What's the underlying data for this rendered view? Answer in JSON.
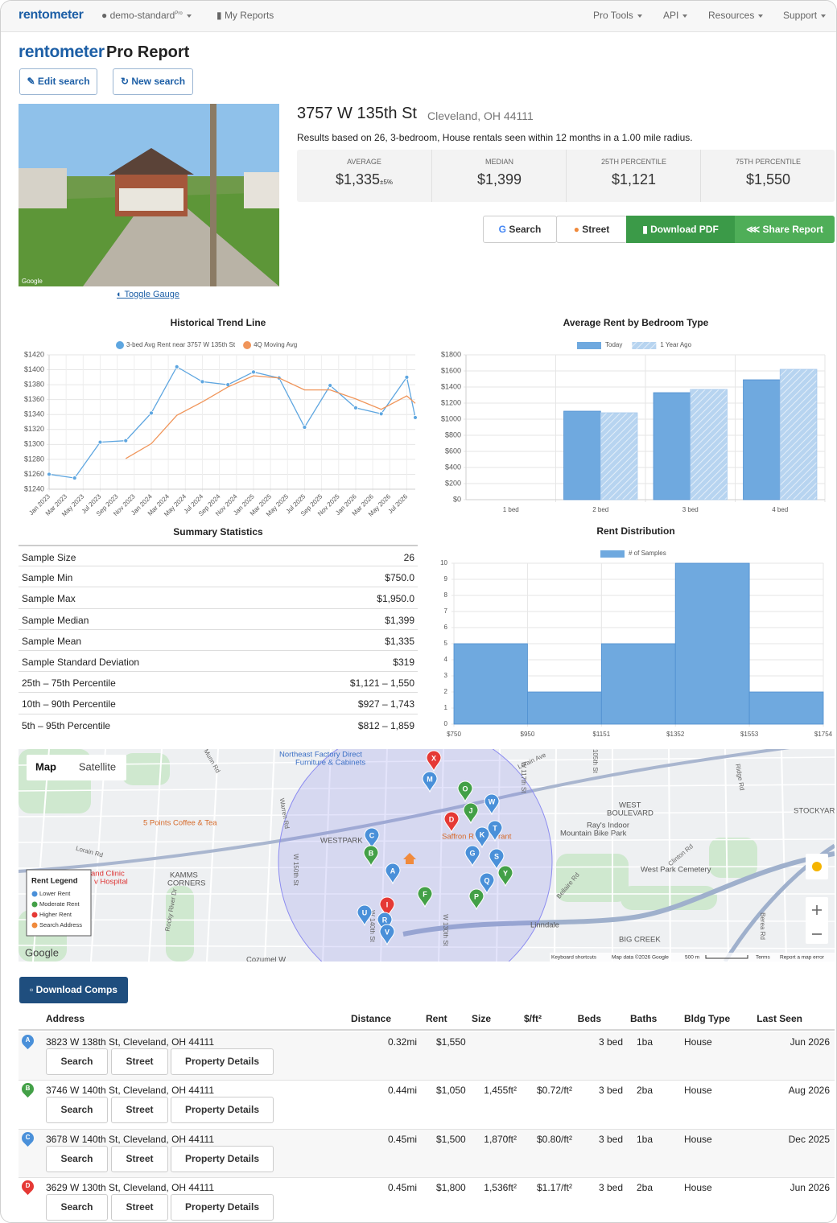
{
  "nav": {
    "brand": "rentometer",
    "user": "demo-standard",
    "badge": "Pro",
    "reports": "My Reports",
    "menu": [
      "Pro Tools",
      "API",
      "Resources",
      "Support"
    ]
  },
  "header": {
    "brand": "rentometer",
    "title": "Pro Report",
    "buttons": [
      "Edit search",
      "New search"
    ]
  },
  "photo": {
    "credit": "Google",
    "toggle": "Toggle Gauge"
  },
  "property": {
    "address": "3757 W 135th St",
    "city": "Cleveland, OH 44111",
    "summary": "Results based on 26, 3-bedroom, House rentals seen within 12 months in a 1.00 mile radius.",
    "stats": [
      {
        "label": "AVERAGE",
        "value": "$1,335",
        "note": "±5%"
      },
      {
        "label": "MEDIAN",
        "value": "$1,399"
      },
      {
        "label": "25TH PERCENTILE",
        "value": "$1,121"
      },
      {
        "label": "75TH PERCENTILE",
        "value": "$1,550"
      }
    ]
  },
  "actions": [
    "Search",
    "Street",
    "Download PDF",
    "Share Report"
  ],
  "chart_data": [
    {
      "type": "line",
      "title": "Historical Trend Line",
      "x": [
        "Jan 2023",
        "Apr 2023",
        "Jul 2023",
        "Oct 2023",
        "Jan 2024",
        "Apr 2024",
        "Jul 2024",
        "Oct 2024",
        "Jan 2025",
        "Apr 2025",
        "Jul 2025",
        "Oct 2025",
        "Jan 2026",
        "Apr 2026",
        "Jul 2026",
        "Aug 2026"
      ],
      "xlim": [
        "Jan 2023",
        "Aug 2026"
      ],
      "xticks": [
        "Jan 2023",
        "Mar 2023",
        "May 2023",
        "Jul 2023",
        "Sep 2023",
        "Nov 2023",
        "Jan 2024",
        "Mar 2024",
        "May 2024",
        "Jul 2024",
        "Sep 2024",
        "Nov 2024",
        "Jan 2025",
        "Mar 2025",
        "May 2025",
        "Jul 2025",
        "Sep 2025",
        "Nov 2025",
        "Jan 2026",
        "Mar 2026",
        "May 2026",
        "Jul 2026"
      ],
      "series": [
        {
          "name": "3-bed Avg Rent near 3757 W 135th St",
          "color": "#5ea6e0",
          "markers": true,
          "values": [
            1260,
            1255,
            1303,
            1305,
            1342,
            1404,
            1384,
            1380,
            1397,
            1389,
            1323,
            1379,
            1349,
            1341,
            1390,
            1336
          ]
        },
        {
          "name": "4Q Moving Avg",
          "color": "#f0955a",
          "markers": false,
          "values": [
            null,
            null,
            null,
            1281,
            1301,
            1339,
            1357,
            1377,
            1392,
            1389,
            1373,
            1373,
            1361,
            1347,
            1365,
            1355
          ]
        }
      ],
      "ylim": [
        1240,
        1420
      ],
      "yticks": [
        {
          "value": 1240,
          "label": "$1240"
        },
        {
          "value": 1260,
          "label": "$1260"
        },
        {
          "value": 1280,
          "label": "$1280"
        },
        {
          "value": 1300,
          "label": "$1300"
        },
        {
          "value": 1320,
          "label": "$1320"
        },
        {
          "value": 1340,
          "label": "$1340"
        },
        {
          "value": 1360,
          "label": "$1360"
        },
        {
          "value": 1380,
          "label": "$1380"
        },
        {
          "value": 1400,
          "label": "$1400"
        },
        {
          "value": 1420,
          "label": "$1420"
        }
      ],
      "grid": true,
      "legend": "top"
    },
    {
      "type": "bar",
      "title": "Average Rent by Bedroom Type",
      "categories": [
        "1 bed",
        "2 bed",
        "3 bed",
        "4 bed"
      ],
      "series": [
        {
          "name": "Today",
          "color": "#6fa9df",
          "hatch": false,
          "values": [
            null,
            1100,
            1330,
            1490
          ]
        },
        {
          "name": "1 Year Ago",
          "color": "#b7d4f0",
          "hatch": true,
          "values": [
            null,
            1080,
            1370,
            1620
          ]
        }
      ],
      "ylim": [
        0,
        1800
      ],
      "yticks": [
        {
          "value": 0,
          "label": "$0"
        },
        {
          "value": 200,
          "label": "$200"
        },
        {
          "value": 400,
          "label": "$400"
        },
        {
          "value": 600,
          "label": "$600"
        },
        {
          "value": 800,
          "label": "$800"
        },
        {
          "value": 1000,
          "label": "$1000"
        },
        {
          "value": 1200,
          "label": "$1200"
        },
        {
          "value": 1400,
          "label": "$1400"
        },
        {
          "value": 1600,
          "label": "$1600"
        },
        {
          "value": 1800,
          "label": "$1800"
        }
      ],
      "grid": true,
      "legend": "top"
    },
    {
      "type": "histogram",
      "title": "Rent Distribution",
      "series": [
        {
          "name": "# of Samples",
          "color": "#6fa9df",
          "values": [
            5,
            2,
            5,
            10,
            2
          ]
        }
      ],
      "bins": [
        750,
        950,
        1151,
        1352,
        1553,
        1754
      ],
      "xlim": [
        750,
        1754
      ],
      "xticks": [
        {
          "value": 750,
          "label": "$750"
        },
        {
          "value": 950,
          "label": "$950"
        },
        {
          "value": 1151,
          "label": "$1151"
        },
        {
          "value": 1352,
          "label": "$1352"
        },
        {
          "value": 1553,
          "label": "$1553"
        },
        {
          "value": 1754,
          "label": "$1754"
        }
      ],
      "ylim": [
        0,
        10
      ],
      "yticks": [
        0,
        1,
        2,
        3,
        4,
        5,
        6,
        7,
        8,
        9,
        10
      ],
      "grid": true,
      "legend": "top"
    }
  ],
  "summary": {
    "title": "Summary Statistics",
    "rows": [
      [
        "Sample Size",
        "26"
      ],
      [
        "Sample Min",
        "$750.0"
      ],
      [
        "Sample Max",
        "$1,950.0"
      ],
      [
        "Sample Median",
        "$1,399"
      ],
      [
        "Sample Mean",
        "$1,335"
      ],
      [
        "Sample Standard Deviation",
        "$319"
      ],
      [
        "25th – 75th Percentile",
        "$1,121 – 1,550"
      ],
      [
        "10th – 90th Percentile",
        "$927 – 1,743"
      ],
      [
        "5th – 95th Percentile",
        "$812 – 1,859"
      ]
    ]
  },
  "map": {
    "tabs": [
      "Map",
      "Satellite"
    ],
    "places": [
      "Northeast Factory Direct",
      "Furniture & Cabinets",
      "5 Points Coffee & Tea",
      "WESTPARK",
      "KAMMS",
      "CORNERS",
      "WEST",
      "BOULEVARD",
      "Ray's Indoor",
      "Mountain Bike Park",
      "West Park Cemetery",
      "Linndale",
      "BIG CREEK",
      "STOCKYAR",
      "Saffron R",
      "rant",
      "and Clinic",
      "v Hospital",
      "Cozumel W"
    ],
    "roads": [
      "Munn Rd",
      "Warren Rd",
      "Lorain Ave",
      "Lorain Rd",
      "W 150th St",
      "Rocky River Dr",
      "W 140th St",
      "W 130th St",
      "W 117th St",
      "W 105th St",
      "Bellaire Rd",
      "Clinton Rd",
      "Ridge Rd",
      "Berea Rd"
    ],
    "legend": {
      "title": "Rent Legend",
      "items": [
        {
          "label": "Lower Rent",
          "color": "#4a90d9"
        },
        {
          "label": "Moderate Rent",
          "color": "#43a047"
        },
        {
          "label": "Higher Rent",
          "color": "#e53935"
        },
        {
          "label": "Search Address",
          "color": "#f08a3c"
        }
      ]
    },
    "markers": [
      {
        "label": "X",
        "color": "#e53935"
      },
      {
        "label": "M",
        "color": "#4a90d9"
      },
      {
        "label": "O",
        "color": "#43a047"
      },
      {
        "label": "W",
        "color": "#4a90d9"
      },
      {
        "label": "J",
        "color": "#43a047"
      },
      {
        "label": "D",
        "color": "#e53935"
      },
      {
        "label": "T",
        "color": "#4a90d9"
      },
      {
        "label": "K",
        "color": "#4a90d9"
      },
      {
        "label": "C",
        "color": "#4a90d9"
      },
      {
        "label": "G",
        "color": "#4a90d9"
      },
      {
        "label": "S",
        "color": "#4a90d9"
      },
      {
        "label": "B",
        "color": "#43a047"
      },
      {
        "label": "A",
        "color": "#4a90d9"
      },
      {
        "label": "Y",
        "color": "#43a047"
      },
      {
        "label": "Q",
        "color": "#4a90d9"
      },
      {
        "label": "F",
        "color": "#43a047"
      },
      {
        "label": "P",
        "color": "#43a047"
      },
      {
        "label": "I",
        "color": "#e53935"
      },
      {
        "label": "U",
        "color": "#4a90d9"
      },
      {
        "label": "R",
        "color": "#4a90d9"
      },
      {
        "label": "V",
        "color": "#4a90d9"
      }
    ],
    "attribution": "Google",
    "footer": [
      "Keyboard shortcuts",
      "Map data ©2026 Google",
      "500 m",
      "Terms",
      "Report a map error"
    ]
  },
  "comps": {
    "download": "Download Comps",
    "columns": [
      "Address",
      "Distance",
      "Rent",
      "Size",
      "$/ft²",
      "Beds",
      "Baths",
      "Bldg Type",
      "Last Seen"
    ],
    "actions": [
      "Search",
      "Street",
      "Property Details"
    ],
    "rows": [
      {
        "marker": "A",
        "color": "#4a90d9",
        "cells": [
          "3823 W 138th St, Cleveland, OH 44111",
          "0.32mi",
          "$1,550",
          null,
          null,
          "3 bed",
          "1ba",
          "House",
          "Jun 2026"
        ]
      },
      {
        "marker": "B",
        "color": "#43a047",
        "cells": [
          "3746 W 140th St, Cleveland, OH 44111",
          "0.44mi",
          "$1,050",
          "1,455ft²",
          "$0.72/ft²",
          "3 bed",
          "2ba",
          "House",
          "Aug 2026"
        ]
      },
      {
        "marker": "C",
        "color": "#4a90d9",
        "cells": [
          "3678 W 140th St, Cleveland, OH 44111",
          "0.45mi",
          "$1,500",
          "1,870ft²",
          "$0.80/ft²",
          "3 bed",
          "1ba",
          "House",
          "Dec 2025"
        ]
      },
      {
        "marker": "D",
        "color": "#e53935",
        "cells": [
          "3629 W 130th St, Cleveland, OH 44111",
          "0.45mi",
          "$1,800",
          "1,536ft²",
          "$1.17/ft²",
          "3 bed",
          "2ba",
          "House",
          "Jun 2026"
        ]
      }
    ]
  }
}
